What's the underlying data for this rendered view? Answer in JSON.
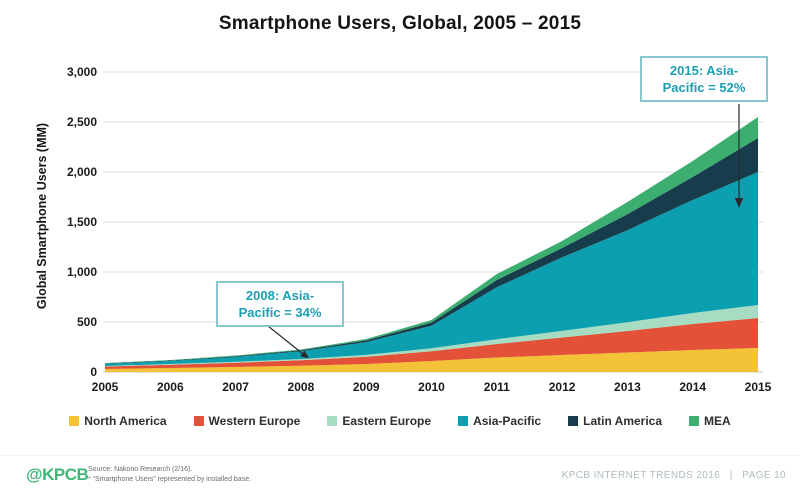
{
  "slide": {
    "title": "Smartphone Users, Global, 2005 – 2015"
  },
  "chart_data": {
    "type": "area",
    "stacked": true,
    "title": "Smartphone Users, Global, 2005 – 2015",
    "xlabel": "",
    "ylabel": "Global Smartphone Users (MM)",
    "ylim": [
      0,
      3000
    ],
    "grid": true,
    "legend_position": "bottom",
    "ytick_values": [
      0,
      500,
      1000,
      1500,
      2000,
      2500,
      3000
    ],
    "ytick_labels": [
      "0",
      "500",
      "1,000",
      "1,500",
      "2,000",
      "2,500",
      "3,000"
    ],
    "categories": [
      "2005",
      "2006",
      "2007",
      "2008",
      "2009",
      "2010",
      "2011",
      "2012",
      "2013",
      "2014",
      "2015"
    ],
    "series": [
      {
        "name": "North America",
        "color": "#F3C237",
        "values": [
          30,
          40,
          50,
          62,
          80,
          110,
          145,
          170,
          195,
          220,
          240
        ]
      },
      {
        "name": "Western Europe",
        "color": "#E25138",
        "values": [
          25,
          33,
          43,
          55,
          72,
          98,
          135,
          175,
          215,
          260,
          300
        ]
      },
      {
        "name": "Eastern Europe",
        "color": "#A8DCC2",
        "values": [
          5,
          7,
          10,
          13,
          19,
          30,
          48,
          66,
          88,
          110,
          130
        ]
      },
      {
        "name": "Asia-Pacific",
        "color": "#0C9FAF",
        "values": [
          22,
          30,
          47,
          77,
          128,
          225,
          520,
          735,
          920,
          1130,
          1330
        ]
      },
      {
        "name": "Latin America",
        "color": "#173D4D",
        "values": [
          4,
          5,
          8,
          10,
          17,
          32,
          72,
          94,
          160,
          230,
          340
        ]
      },
      {
        "name": "MEA",
        "color": "#3BAE70",
        "values": [
          4,
          5,
          7,
          8,
          14,
          25,
          60,
          70,
          122,
          160,
          210
        ]
      }
    ],
    "totals": [
      90,
      120,
      165,
      225,
      330,
      520,
      980,
      1310,
      1700,
      2110,
      2550
    ],
    "annotations": [
      {
        "year": "2008",
        "text": "2008: Asia-Pacific = 34%"
      },
      {
        "year": "2015",
        "text": "2015: Asia-Pacific = 52%"
      }
    ]
  },
  "callouts": {
    "c2008": {
      "line1": "2008: Asia-",
      "line2": "Pacific = 34%"
    },
    "c2015": {
      "line1": "2015: Asia-",
      "line2": "Pacific = 52%"
    }
  },
  "footer": {
    "logo": "@KPCB",
    "source_line1": "Source: Nakono Research (2/16).",
    "source_line2": "* “Smartphone Users” represented by installed base.",
    "right_text": "KPCB INTERNET TRENDS 2016   |   PAGE 10"
  },
  "colors": {
    "accent_teal": "#1d9fb3",
    "callout_border": "#86c7d0",
    "gridline": "#dcdcdc",
    "baseline": "#c4c4c4",
    "arrow": "#2a2a2a",
    "logo_green": "#3eb778",
    "footer_text": "#aebdba"
  }
}
